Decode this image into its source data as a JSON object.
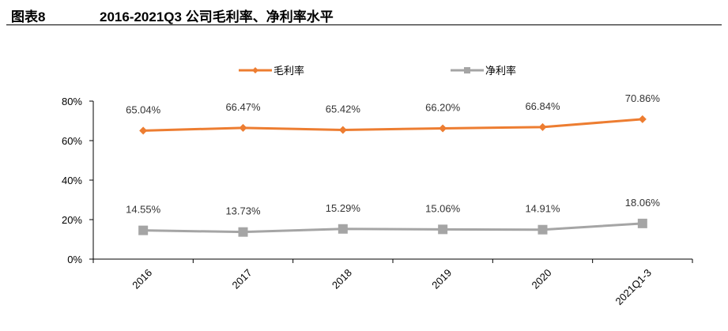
{
  "figure": {
    "label": "图表8",
    "title": "2016-2021Q3 公司毛利率、净利率水平"
  },
  "chart_data": {
    "type": "line",
    "categories": [
      "2016",
      "2017",
      "2018",
      "2019",
      "2020",
      "2021Q1-3"
    ],
    "series": [
      {
        "name": "毛利率",
        "values": [
          65.04,
          66.47,
          65.42,
          66.2,
          66.84,
          70.86
        ],
        "labels": [
          "65.04%",
          "66.47%",
          "65.42%",
          "66.20%",
          "66.84%",
          "70.86%"
        ],
        "color": "#ED7D31",
        "marker": "diamond"
      },
      {
        "name": "净利率",
        "values": [
          14.55,
          13.73,
          15.29,
          15.06,
          14.91,
          18.06
        ],
        "labels": [
          "14.55%",
          "13.73%",
          "15.29%",
          "15.06%",
          "14.91%",
          "18.06%"
        ],
        "color": "#A5A5A5",
        "marker": "square"
      }
    ],
    "yticks": [
      "0%",
      "20%",
      "40%",
      "60%",
      "80%"
    ],
    "ylim": [
      0,
      80
    ],
    "xlabel": "",
    "ylabel": "",
    "grid": false,
    "legend_position": "top-center"
  }
}
